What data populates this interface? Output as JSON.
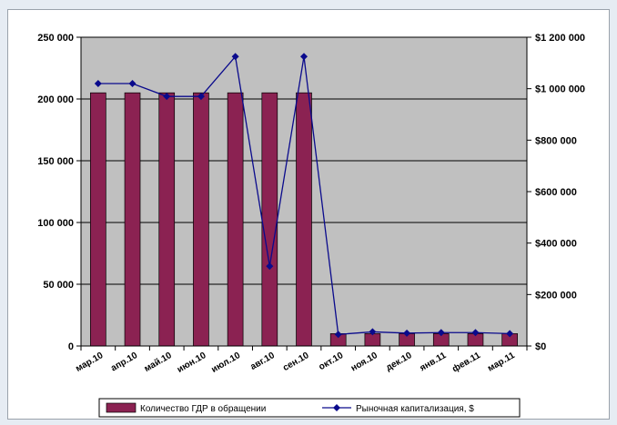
{
  "chart_data": {
    "type": "bar",
    "categories": [
      "мар.10",
      "апр.10",
      "май.10",
      "июн.10",
      "июл.10",
      "авг.10",
      "сен.10",
      "окт.10",
      "ноя.10",
      "дек.10",
      "янв.11",
      "фев.11",
      "мар.11"
    ],
    "series": [
      {
        "name": "Количество ГДР в обращении",
        "type": "bar",
        "axis": "left",
        "color": "#8b2252",
        "values": [
          205000,
          205000,
          205000,
          205000,
          205000,
          205000,
          205000,
          10000,
          10000,
          10000,
          10000,
          10000,
          10000
        ]
      },
      {
        "name": "Рыночная капитализация, $",
        "type": "line",
        "axis": "right",
        "color": "#0a0a8c",
        "values": [
          1020000,
          1020000,
          970000,
          970000,
          1125000,
          310000,
          1125000,
          45000,
          55000,
          50000,
          52000,
          52000,
          48000
        ]
      }
    ],
    "y_left": {
      "min": 0,
      "max": 250000,
      "ticks": [
        0,
        50000,
        100000,
        150000,
        200000,
        250000
      ],
      "tick_labels": [
        "0",
        "50 000",
        "100 000",
        "150 000",
        "200 000",
        "250 000"
      ]
    },
    "y_right": {
      "min": 0,
      "max": 1200000,
      "ticks": [
        0,
        200000,
        400000,
        600000,
        800000,
        1000000,
        1200000
      ],
      "tick_labels": [
        "$0",
        "$200 000",
        "$400 000",
        "$600 000",
        "$800 000",
        "$1 000 000",
        "$1 200 000"
      ]
    },
    "plot_background": "#c0c0c0",
    "grid": true,
    "legend": "bottom"
  }
}
